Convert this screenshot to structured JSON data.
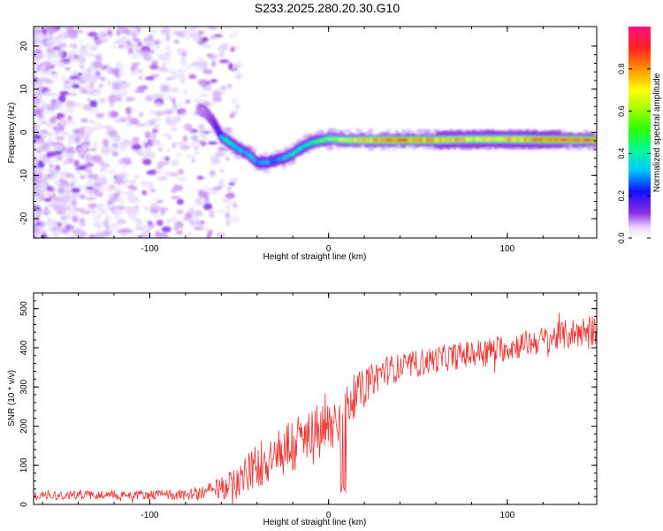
{
  "title": "S233.2025.280.20.30.G10",
  "colors": {
    "snr_line": "#ee3333",
    "axis": "#000000",
    "background": "#ffffff"
  },
  "chart_data": [
    {
      "type": "heatmap",
      "xlabel": "Height of straight line (km)",
      "ylabel": "Frequency (Hz)",
      "xlim": [
        -165,
        150
      ],
      "ylim": [
        -24.5,
        24.5
      ],
      "x_ticks": [
        -100,
        0,
        100
      ],
      "y_ticks": [
        -20,
        -10,
        0,
        10,
        20
      ],
      "x_tick_labels": [
        "-100",
        "0",
        "100"
      ],
      "y_tick_labels": [
        "-20",
        "-10",
        "0",
        "10",
        "20"
      ],
      "colorbar": {
        "label": "Normalized spectral amplitude",
        "range": [
          0,
          1
        ],
        "ticks": [
          0.0,
          0.2,
          0.4,
          0.6,
          0.8
        ],
        "tick_labels": [
          "0.0",
          "0.2",
          "0.4",
          "0.6",
          "0.8"
        ]
      },
      "ridge": {
        "x": [
          -70,
          -65,
          -60,
          -55,
          -50,
          -45,
          -40,
          -35,
          -30,
          -25,
          -20,
          -15,
          -10,
          -5,
          0,
          10,
          20,
          40,
          60,
          80,
          100,
          120,
          150
        ],
        "freq": [
          5,
          3,
          -1,
          -2.5,
          -4,
          -5,
          -7,
          -7,
          -6.5,
          -6,
          -5,
          -3.5,
          -2.5,
          -2,
          -1.5,
          -1.8,
          -1.8,
          -1.8,
          -1.8,
          -1.6,
          -1.6,
          -1.7,
          -1.8
        ],
        "amplitude": [
          0.15,
          0.2,
          0.35,
          0.4,
          0.35,
          0.3,
          0.3,
          0.3,
          0.3,
          0.3,
          0.35,
          0.4,
          0.45,
          0.5,
          0.55,
          0.65,
          0.75,
          0.85,
          0.8,
          0.7,
          0.75,
          0.85,
          0.9
        ]
      }
    },
    {
      "type": "line",
      "xlabel": "Height of straight line (km)",
      "ylabel": "SNR (10 * v/v)",
      "xlim": [
        -165,
        150
      ],
      "ylim": [
        0,
        540
      ],
      "x_ticks": [
        -100,
        0,
        100
      ],
      "y_ticks": [
        0,
        100,
        200,
        300,
        400,
        500
      ],
      "x_tick_labels": [
        "-100",
        "0",
        "100"
      ],
      "y_tick_labels": [
        "0",
        "100",
        "200",
        "300",
        "400",
        "500"
      ],
      "series": [
        {
          "name": "SNR",
          "x": [
            -165,
            -140,
            -120,
            -100,
            -80,
            -70,
            -60,
            -50,
            -40,
            -30,
            -20,
            -10,
            0,
            5,
            10,
            15,
            20,
            30,
            40,
            60,
            80,
            100,
            120,
            140,
            150
          ],
          "values": [
            22,
            25,
            25,
            25,
            25,
            30,
            40,
            60,
            100,
            130,
            150,
            170,
            190,
            220,
            250,
            280,
            300,
            340,
            350,
            370,
            385,
            400,
            420,
            440,
            445
          ],
          "spread": [
            12,
            12,
            12,
            12,
            14,
            20,
            30,
            45,
            60,
            75,
            80,
            80,
            80,
            70,
            60,
            55,
            45,
            40,
            35,
            35,
            35,
            35,
            35,
            40,
            40
          ]
        }
      ]
    }
  ]
}
